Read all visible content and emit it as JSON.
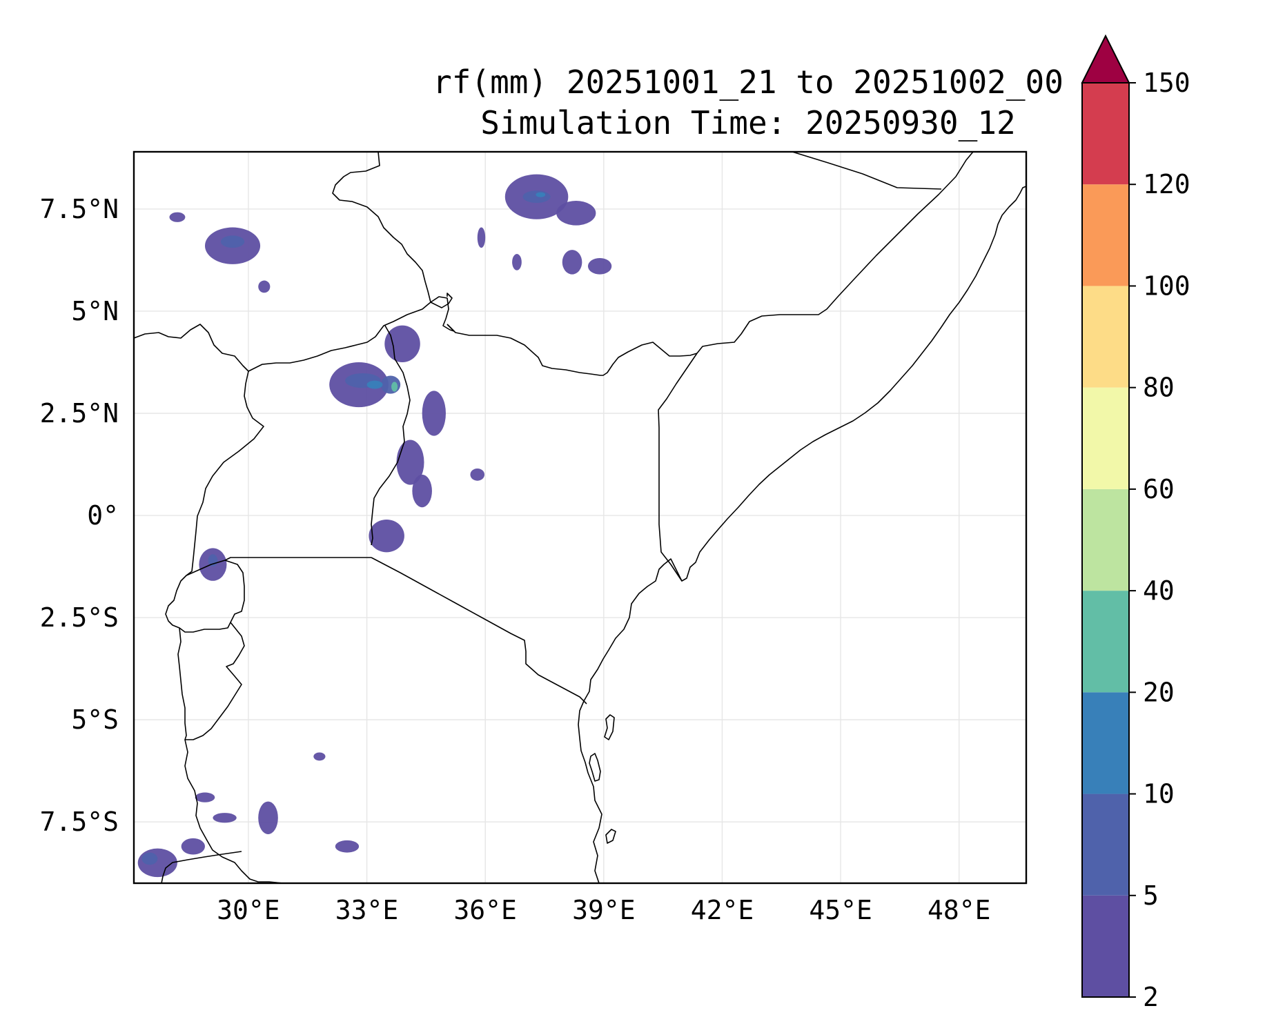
{
  "figure": {
    "title_line1": "rf(mm) 20251001_21 to 20251002_00",
    "title_line2": "Simulation Time: 20250930_12"
  },
  "map": {
    "lon_range": [
      27.1,
      49.7
    ],
    "lat_range": [
      -9.0,
      8.9
    ],
    "lon_ticks": [
      {
        "value": 30,
        "label": "30°E"
      },
      {
        "value": 33,
        "label": "33°E"
      },
      {
        "value": 36,
        "label": "36°E"
      },
      {
        "value": 39,
        "label": "39°E"
      },
      {
        "value": 42,
        "label": "42°E"
      },
      {
        "value": 45,
        "label": "45°E"
      },
      {
        "value": 48,
        "label": "48°E"
      }
    ],
    "lat_ticks": [
      {
        "value": 7.5,
        "label": "7.5°N"
      },
      {
        "value": 5,
        "label": "5°N"
      },
      {
        "value": 2.5,
        "label": "2.5°N"
      },
      {
        "value": 0,
        "label": "0°"
      },
      {
        "value": -2.5,
        "label": "2.5°S"
      },
      {
        "value": -5,
        "label": "5°S"
      },
      {
        "value": -7.5,
        "label": "7.5°S"
      }
    ],
    "rain_cells": [
      {
        "lon": 32.8,
        "lat": 3.2,
        "rlon": 0.75,
        "rlat": 0.55,
        "level": 1
      },
      {
        "lon": 33.9,
        "lat": 4.2,
        "rlon": 0.45,
        "rlat": 0.45,
        "level": 1
      },
      {
        "lon": 34.7,
        "lat": 2.5,
        "rlon": 0.3,
        "rlat": 0.55,
        "level": 1
      },
      {
        "lon": 34.1,
        "lat": 1.3,
        "rlon": 0.35,
        "rlat": 0.55,
        "level": 1
      },
      {
        "lon": 34.4,
        "lat": 0.6,
        "rlon": 0.25,
        "rlat": 0.4,
        "level": 1
      },
      {
        "lon": 33.5,
        "lat": -0.5,
        "rlon": 0.45,
        "rlat": 0.4,
        "level": 1
      },
      {
        "lon": 35.8,
        "lat": 1.0,
        "rlon": 0.18,
        "rlat": 0.15,
        "level": 1
      },
      {
        "lon": 32.9,
        "lat": 3.3,
        "rlon": 0.45,
        "rlat": 0.18,
        "level": 2
      },
      {
        "lon": 33.6,
        "lat": 3.2,
        "rlon": 0.25,
        "rlat": 0.22,
        "level": 2
      },
      {
        "lon": 33.2,
        "lat": 3.2,
        "rlon": 0.2,
        "rlat": 0.1,
        "level": 3
      },
      {
        "lon": 33.7,
        "lat": 3.15,
        "rlon": 0.08,
        "rlat": 0.12,
        "level": 4
      },
      {
        "lon": 37.3,
        "lat": 7.8,
        "rlon": 0.8,
        "rlat": 0.55,
        "level": 1
      },
      {
        "lon": 38.3,
        "lat": 7.4,
        "rlon": 0.5,
        "rlat": 0.3,
        "level": 1
      },
      {
        "lon": 37.3,
        "lat": 7.8,
        "rlon": 0.35,
        "rlat": 0.15,
        "level": 2
      },
      {
        "lon": 37.4,
        "lat": 7.85,
        "rlon": 0.12,
        "rlat": 0.06,
        "level": 3
      },
      {
        "lon": 38.2,
        "lat": 6.2,
        "rlon": 0.25,
        "rlat": 0.3,
        "level": 1
      },
      {
        "lon": 38.9,
        "lat": 6.1,
        "rlon": 0.3,
        "rlat": 0.2,
        "level": 1
      },
      {
        "lon": 36.8,
        "lat": 6.2,
        "rlon": 0.12,
        "rlat": 0.2,
        "level": 1
      },
      {
        "lon": 35.9,
        "lat": 6.8,
        "rlon": 0.1,
        "rlat": 0.25,
        "level": 1
      },
      {
        "lon": 29.6,
        "lat": 6.6,
        "rlon": 0.7,
        "rlat": 0.45,
        "level": 1
      },
      {
        "lon": 29.6,
        "lat": 6.7,
        "rlon": 0.3,
        "rlat": 0.15,
        "level": 2
      },
      {
        "lon": 28.2,
        "lat": 7.3,
        "rlon": 0.2,
        "rlat": 0.12,
        "level": 1
      },
      {
        "lon": 30.4,
        "lat": 5.6,
        "rlon": 0.15,
        "rlat": 0.15,
        "level": 1
      },
      {
        "lon": 29.1,
        "lat": -1.2,
        "rlon": 0.35,
        "rlat": 0.4,
        "level": 1
      },
      {
        "lon": 29.1,
        "lat": -1.1,
        "rlon": 0.12,
        "rlat": 0.15,
        "level": 2
      },
      {
        "lon": 27.7,
        "lat": -8.5,
        "rlon": 0.5,
        "rlat": 0.35,
        "level": 1
      },
      {
        "lon": 27.5,
        "lat": -8.4,
        "rlon": 0.2,
        "rlat": 0.15,
        "level": 2
      },
      {
        "lon": 28.6,
        "lat": -8.1,
        "rlon": 0.3,
        "rlat": 0.2,
        "level": 1
      },
      {
        "lon": 30.5,
        "lat": -7.4,
        "rlon": 0.25,
        "rlat": 0.4,
        "level": 1
      },
      {
        "lon": 28.9,
        "lat": -6.9,
        "rlon": 0.25,
        "rlat": 0.12,
        "level": 1
      },
      {
        "lon": 32.5,
        "lat": -8.1,
        "rlon": 0.3,
        "rlat": 0.15,
        "level": 1
      },
      {
        "lon": 31.8,
        "lat": -5.9,
        "rlon": 0.15,
        "rlat": 0.1,
        "level": 1
      },
      {
        "lon": 29.4,
        "lat": -7.4,
        "rlon": 0.3,
        "rlat": 0.12,
        "level": 1
      }
    ]
  },
  "colorbar": {
    "levels": [
      "2",
      "5",
      "10",
      "20",
      "40",
      "60",
      "80",
      "100",
      "120",
      "150"
    ],
    "colors": [
      "#5e4fa2",
      "#4f62ab",
      "#3880b9",
      "#62bea6",
      "#bde4a0",
      "#f2f8a9",
      "#fddc87",
      "#fa9a58",
      "#d43d4f"
    ],
    "extend_color": "#9e0142"
  }
}
